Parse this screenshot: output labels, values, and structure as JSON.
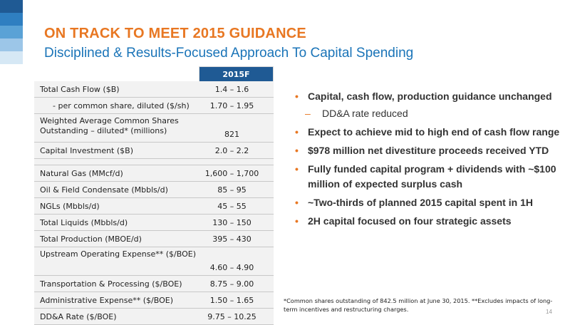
{
  "header": {
    "title": "ON TRACK TO MEET 2015 GUIDANCE",
    "subtitle": "Disciplined & Results-Focused Approach To Capital Spending"
  },
  "table": {
    "column_header": "2015F",
    "rows_top": [
      {
        "label": "Total Cash Flow ($B)",
        "value": "1.4 – 1.6"
      },
      {
        "label": "- per common share, diluted ($/sh)",
        "value": "1.70 – 1.95"
      },
      {
        "label": "Weighted Average Common Shares Outstanding – diluted* (millions)",
        "value": "821"
      },
      {
        "label": "Capital Investment ($B)",
        "value": "2.0 – 2.2"
      }
    ],
    "rows_bottom": [
      {
        "label": "Natural Gas (MMcf/d)",
        "value": "1,600 – 1,700"
      },
      {
        "label": "Oil & Field Condensate (Mbbls/d)",
        "value": "85 – 95"
      },
      {
        "label": "NGLs (Mbbls/d)",
        "value": "45 – 55"
      },
      {
        "label": "Total Liquids (Mbbls/d)",
        "value": "130 – 150"
      },
      {
        "label": "Total Production (MBOE/d)",
        "value": "395 – 430"
      },
      {
        "label": "Upstream Operating Expense** ($/BOE)",
        "value": "4.60 – 4.90"
      },
      {
        "label": "Transportation & Processing ($/BOE)",
        "value": "8.75 – 9.00"
      },
      {
        "label": "Administrative Expense** ($/BOE)",
        "value": "1.50 – 1.65"
      },
      {
        "label": "DD&A  Rate ($/BOE)",
        "value": "9.75 – 10.25"
      }
    ]
  },
  "bullets": [
    {
      "text": "Capital, cash flow, production guidance unchanged",
      "sub": false
    },
    {
      "text": "DD&A rate reduced",
      "sub": true
    },
    {
      "text": "Expect to achieve mid to high end of cash flow range",
      "sub": false
    },
    {
      "text": "$978 million net divestiture proceeds received YTD",
      "sub": false
    },
    {
      "text": "Fully funded capital program + dividends with ~$100 million of expected surplus cash",
      "sub": false
    },
    {
      "text": "~Two-thirds of planned 2015 capital spent in 1H",
      "sub": false
    },
    {
      "text": "2H capital focused on four strategic assets",
      "sub": false
    }
  ],
  "bullet_markers": {
    "main": "•",
    "sub": "–"
  },
  "footnote": "*Common shares outstanding of 842.5 million at June 30, 2015. **Excludes impacts of long-term incentives and restructuring charges.",
  "page_number": "14",
  "colors": {
    "title": "#e87722",
    "subtitle": "#1a74b8",
    "table_header": "#1f5a94",
    "table_row": "#f2f2f2",
    "stripe": [
      "#1f5a94",
      "#2f7fc1",
      "#5aa2d6",
      "#9cc6e8",
      "#d6e8f5"
    ]
  }
}
